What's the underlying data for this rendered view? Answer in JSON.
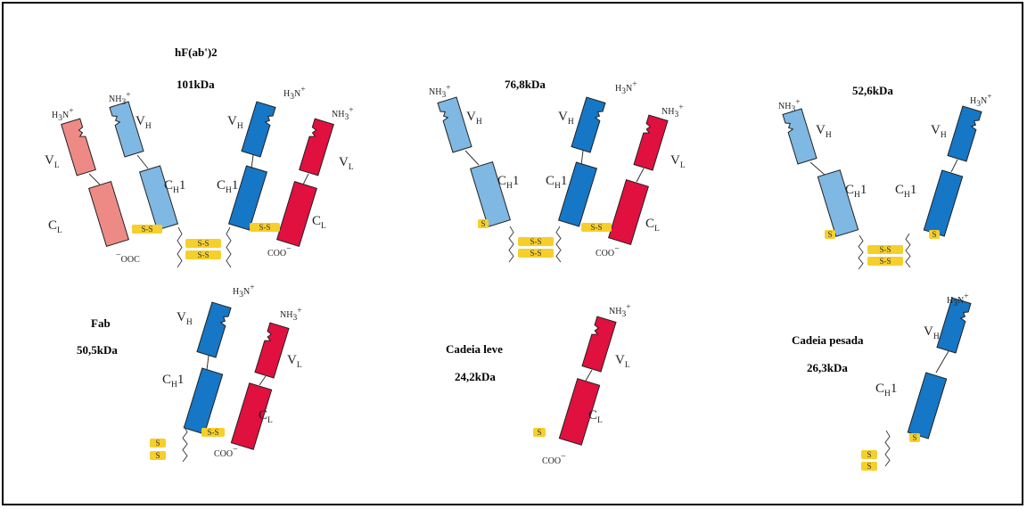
{
  "colors": {
    "heavy_light_shade": "#7fb8e2",
    "heavy_dark_shade": "#1577c6",
    "light_pink": "#ee8a86",
    "light_red": "#e0103f",
    "disulfide": "#f6cf2b"
  },
  "fragments": [
    {
      "name": "hF(ab')2",
      "mass": "101kDa"
    },
    {
      "name": "",
      "mass": "76,8kDa"
    },
    {
      "name": "",
      "mass": "52,6kDa"
    },
    {
      "name": "Fab",
      "mass": "50,5kDa"
    },
    {
      "name": "Cadeia leve",
      "mass": "24,2kDa"
    },
    {
      "name": "Cadeia pesada",
      "mass": "26,3kDa"
    }
  ],
  "domain_labels": {
    "vh_main": "V",
    "vh_sub": "H",
    "vl_main": "V",
    "vl_sub": "L",
    "ch1_main": "C",
    "ch1_sub": "H",
    "ch1_suffix": "1",
    "cl_main": "C",
    "cl_sub": "L"
  },
  "termini": {
    "nh3": "NH",
    "nh3_sub": "3",
    "nh3_sup": "+",
    "h3n": "H",
    "h3n_sub": "3",
    "h3n_n": "N",
    "coo": "COO",
    "ooc": "OOC",
    "minus": "−"
  },
  "disulfide_labels": {
    "pair": "S-S",
    "single": "S"
  }
}
